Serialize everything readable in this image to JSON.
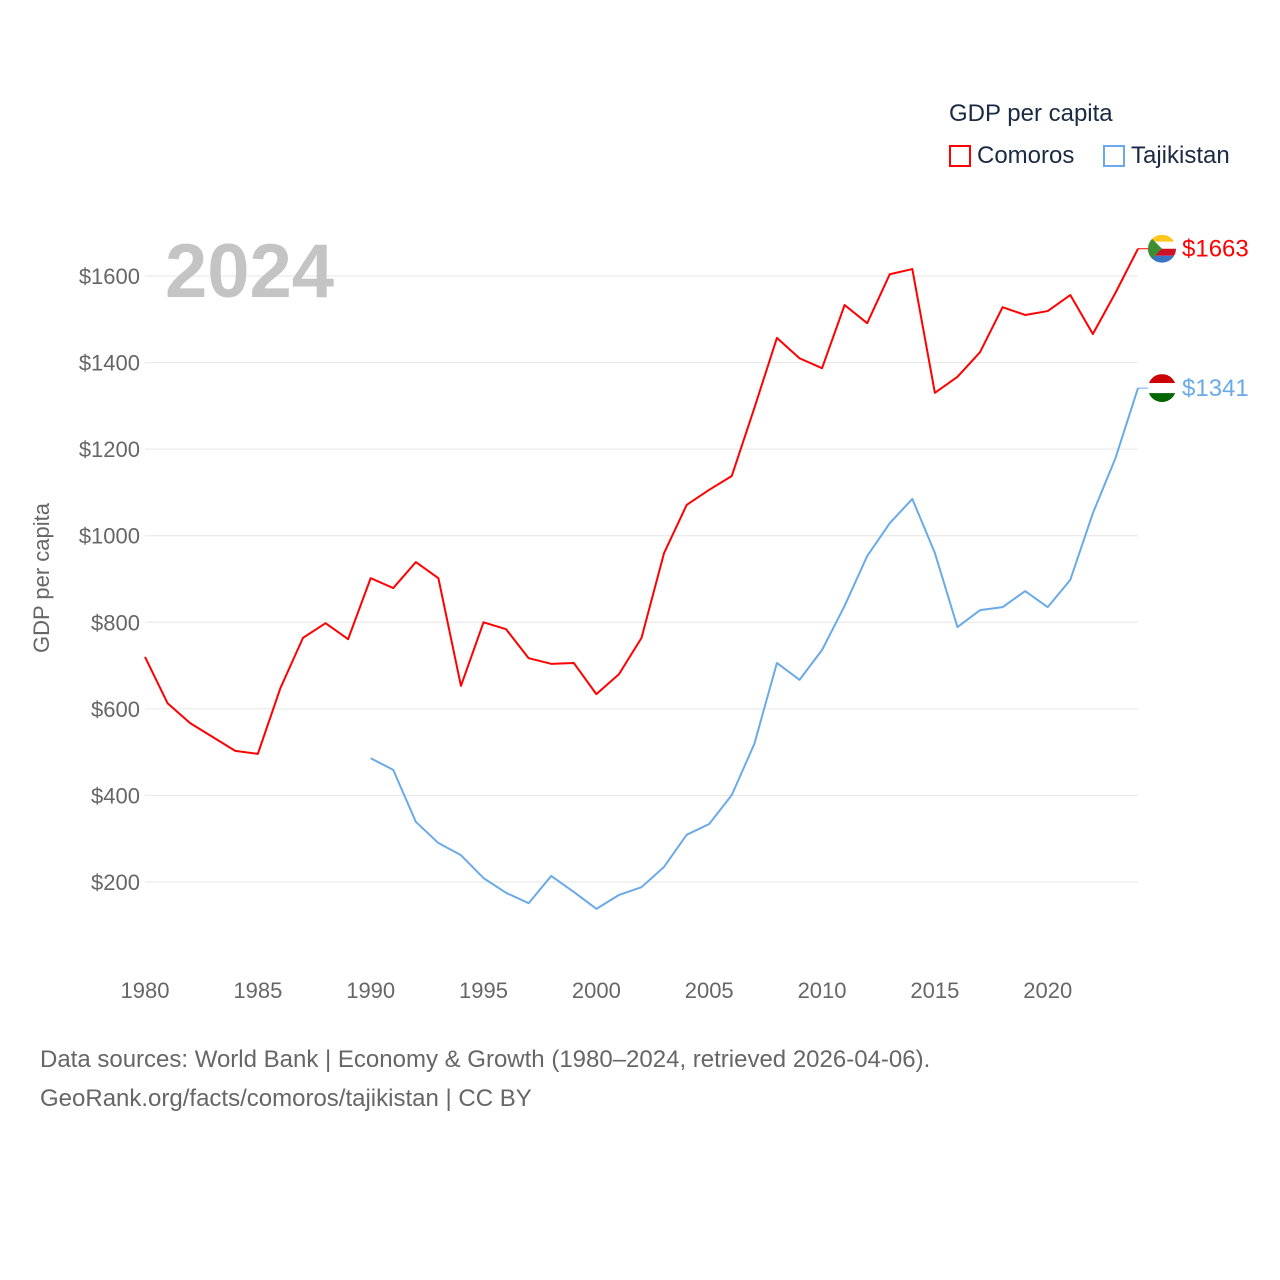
{
  "legend": {
    "title": "GDP per capita",
    "items": [
      {
        "label": "Comoros",
        "color": "#ff0000"
      },
      {
        "label": "Tajikistan",
        "color": "#6aaae8"
      }
    ]
  },
  "year_label": "2024",
  "footer": {
    "line1": "Data sources: World Bank | Economy & Growth (1980–2024, retrieved 2026-04-06).",
    "line2": "GeoRank.org/facts/comoros/tajikistan | CC BY"
  },
  "chart_data": {
    "type": "line",
    "title": "GDP per capita",
    "xlabel": "",
    "ylabel": "GDP per capita",
    "xlim": [
      1980,
      2024
    ],
    "ylim": [
      100,
      1700
    ],
    "xticks": [
      1980,
      1985,
      1990,
      1995,
      2000,
      2005,
      2010,
      2015,
      2020
    ],
    "yticks": [
      200,
      400,
      600,
      800,
      1000,
      1200,
      1400,
      1600
    ],
    "ytick_labels": [
      "$200",
      "$400",
      "$600",
      "$800",
      "$1000",
      "$1200",
      "$1400",
      "$1600"
    ],
    "grid": true,
    "legend_position": "top-right",
    "series": [
      {
        "name": "Comoros",
        "color": "#ff0000",
        "end_label": "$1663",
        "start_year": 1980,
        "values": [
          720,
          613,
          567,
          535,
          503,
          496,
          648,
          764,
          798,
          761,
          902,
          879,
          939,
          902,
          653,
          800,
          784,
          717,
          704,
          706,
          634,
          680,
          764,
          960,
          1071,
          1106,
          1138,
          1295,
          1457,
          1410,
          1387,
          1533,
          1491,
          1604,
          1616,
          1330,
          1367,
          1424,
          1528,
          1510,
          1519,
          1556,
          1466,
          1561,
          1663
        ]
      },
      {
        "name": "Tajikistan",
        "color": "#6aaae8",
        "end_label": "$1341",
        "start_year": 1990,
        "values": [
          486,
          459,
          339,
          290,
          262,
          209,
          175,
          151,
          214,
          177,
          138,
          170,
          188,
          235,
          309,
          334,
          401,
          519,
          706,
          667,
          736,
          838,
          953,
          1029,
          1085,
          960,
          789,
          828,
          835,
          872,
          835,
          898,
          1052,
          1179,
          1341
        ]
      }
    ]
  }
}
